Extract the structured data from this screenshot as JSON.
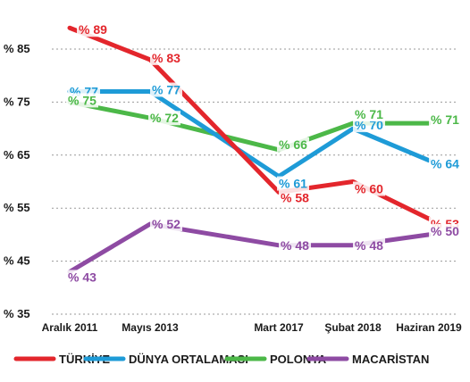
{
  "chart_data": {
    "type": "line",
    "categories": [
      "Aralık 2011",
      "Mayıs 2013",
      "Mart 2017",
      "Şubat 2018",
      "Haziran 2019"
    ],
    "ylim": [
      35,
      90
    ],
    "yticks": [
      35,
      45,
      55,
      65,
      75,
      85
    ],
    "ytick_labels": [
      "% 35",
      "% 45",
      "% 55",
      "% 65",
      "% 75",
      "% 85"
    ],
    "grid": true,
    "legend_position": "bottom",
    "series": [
      {
        "name": "TÜRKİYE",
        "color": "#e3262c",
        "values": [
          89,
          83,
          58,
          60,
          53
        ],
        "labels": [
          "% 89",
          "% 83",
          "% 58",
          "% 60",
          "% 53"
        ]
      },
      {
        "name": "DÜNYA ORTALAMASI",
        "color": "#1e9bd7",
        "values": [
          77,
          77,
          61,
          70,
          64
        ],
        "labels": [
          "% 77",
          "% 77",
          "% 61",
          "% 70",
          "% 64"
        ]
      },
      {
        "name": "POLONYA",
        "color": "#4cb848",
        "values": [
          75,
          72,
          66,
          71,
          71
        ],
        "labels": [
          "% 75",
          "% 72",
          "% 66",
          "% 71",
          "% 71"
        ]
      },
      {
        "name": "MACARİSTAN",
        "color": "#8e4ba3",
        "values": [
          43,
          52,
          48,
          48,
          50
        ],
        "labels": [
          "% 43",
          "% 52",
          "% 48",
          "% 48",
          "% 50"
        ]
      }
    ]
  }
}
